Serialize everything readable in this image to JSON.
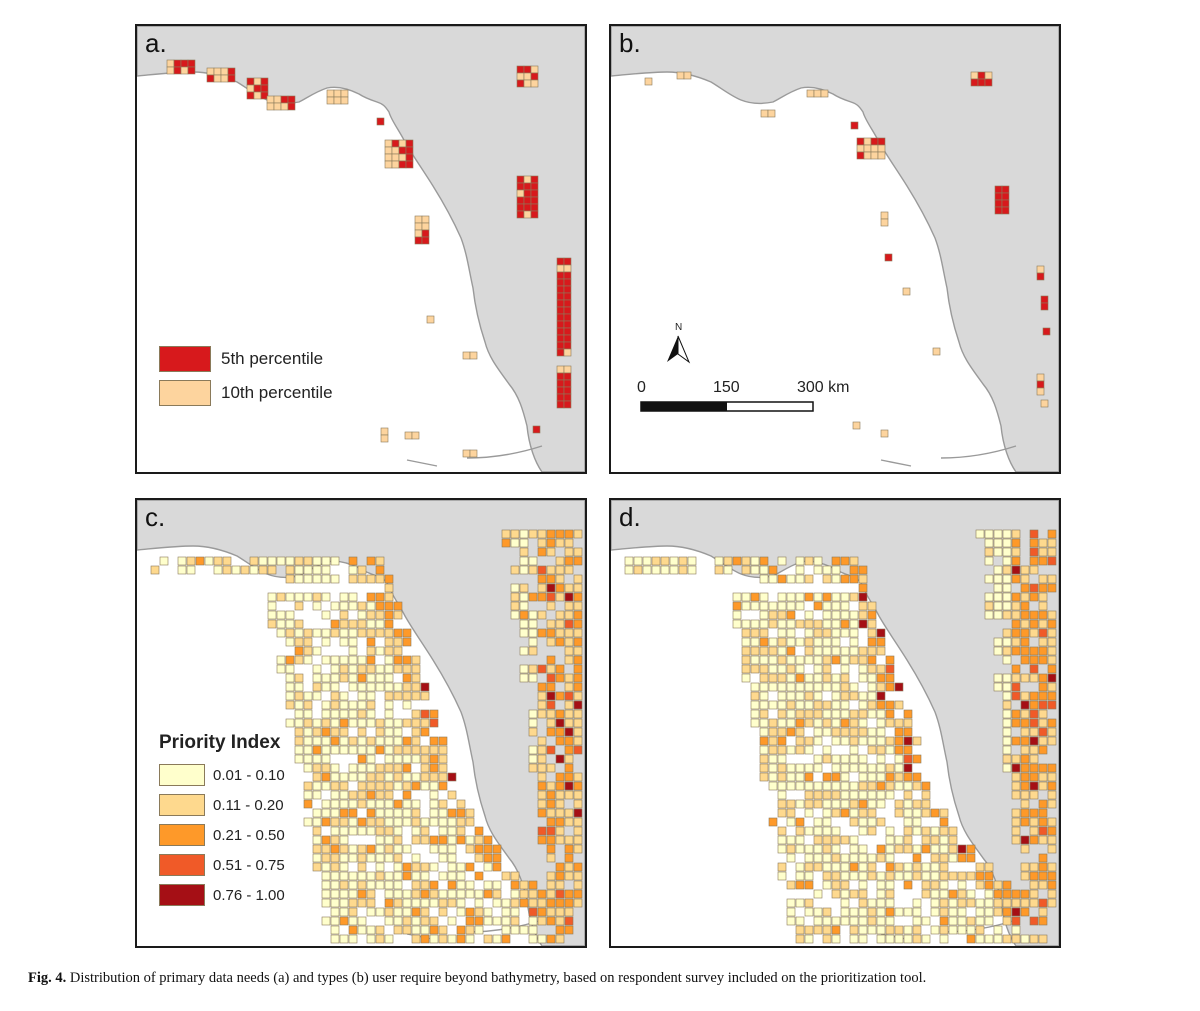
{
  "panels": {
    "a": {
      "label": "a."
    },
    "b": {
      "label": "b."
    },
    "c": {
      "label": "c."
    },
    "d": {
      "label": "d."
    }
  },
  "legend_percentile": {
    "items": [
      {
        "label": "5th percentile",
        "color": "#d7191c"
      },
      {
        "label": "10th percentile",
        "color": "#fdd49e"
      }
    ]
  },
  "legend_priority": {
    "title": "Priority Index",
    "items": [
      {
        "label": "0.01 - 0.10",
        "color": "#ffffcc"
      },
      {
        "label": "0.11 - 0.20",
        "color": "#fed98e"
      },
      {
        "label": "0.21 - 0.50",
        "color": "#fe9929"
      },
      {
        "label": "0.51 - 0.75",
        "color": "#f05a28"
      },
      {
        "label": "0.76 - 1.00",
        "color": "#a50f15"
      }
    ]
  },
  "scalebar": {
    "north": "N",
    "ticks": [
      "0",
      "150",
      "300 km"
    ]
  },
  "caption": {
    "fig": "Fig. 4.",
    "text": "Distribution of primary data needs (a) and types (b) user require beyond bathymetry, based on respondent survey included on the prioritization tool."
  },
  "colors": {
    "land": "#d9d9d9",
    "coast": "#9a9a9a",
    "cell_border": "#8a7a5a"
  }
}
